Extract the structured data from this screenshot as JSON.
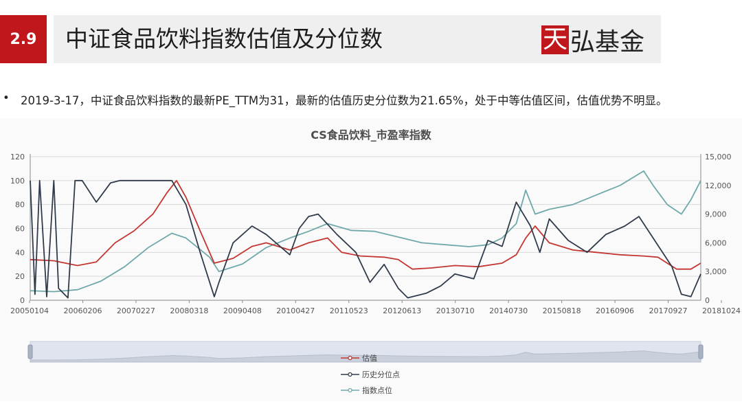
{
  "header": {
    "section_number": "2.9",
    "title": "中证食品饮料指数估值及分位数",
    "logo_mark": "天",
    "logo_rest": "弘基金"
  },
  "bullet": {
    "marker": "•",
    "text": "2019-3-17，中证食品饮料指数的最新PE_TTM为31，最新的估值历史分位数为21.65%，处于中等估值区间，估值优势不明显。"
  },
  "colors": {
    "accent": "#c0171d",
    "pe_line": "#c23531",
    "percentile_line": "#2f3a4a",
    "index_line": "#6fa8a9"
  },
  "chart_data": {
    "type": "line",
    "title": "CS食品饮料_市盈率指数",
    "y_left": {
      "range": [
        0,
        120
      ],
      "ticks": [
        "0",
        "20",
        "40",
        "60",
        "80",
        "100",
        "120"
      ]
    },
    "y_right": {
      "range": [
        0,
        15000
      ],
      "ticks": [
        "0",
        "3,000",
        "6,000",
        "9,000",
        "12,000",
        "15,000"
      ]
    },
    "x_ticks": [
      "20050104",
      "20060206",
      "20070227",
      "20080318",
      "20090408",
      "20100427",
      "20110523",
      "20120613",
      "20130710",
      "20140730",
      "20150818",
      "20160906",
      "20170927",
      "20181024"
    ],
    "x_range": [
      2005.0,
      2019.21
    ],
    "grid": true,
    "legend_position": "bottom",
    "series": [
      {
        "name": "估值",
        "axis": "left",
        "x": [
          2005.0,
          2005.5,
          2006.0,
          2006.4,
          2006.8,
          2007.2,
          2007.6,
          2007.9,
          2008.1,
          2008.3,
          2008.6,
          2008.9,
          2009.3,
          2009.7,
          2010.0,
          2010.5,
          2010.9,
          2011.3,
          2011.6,
          2012.0,
          2012.5,
          2012.8,
          2013.1,
          2013.5,
          2014.0,
          2014.5,
          2015.0,
          2015.3,
          2015.5,
          2015.7,
          2016.0,
          2016.5,
          2017.0,
          2017.5,
          2018.0,
          2018.3,
          2018.7,
          2019.0,
          2019.21
        ],
        "values": [
          34,
          33,
          29,
          32,
          48,
          58,
          72,
          90,
          100,
          86,
          58,
          31,
          35,
          45,
          48,
          42,
          48,
          52,
          40,
          37,
          36,
          34,
          26,
          27,
          29,
          28,
          31,
          38,
          52,
          62,
          48,
          42,
          40,
          38,
          37,
          36,
          26,
          26,
          31
        ]
      },
      {
        "name": "历史分位点",
        "axis": "left",
        "x": [
          2005.0,
          2005.1,
          2005.2,
          2005.35,
          2005.5,
          2005.6,
          2005.8,
          2005.95,
          2006.1,
          2006.4,
          2006.7,
          2006.9,
          2007.2,
          2007.6,
          2008.0,
          2008.3,
          2008.6,
          2008.9,
          2009.0,
          2009.3,
          2009.7,
          2010.0,
          2010.5,
          2010.7,
          2010.9,
          2011.1,
          2011.5,
          2011.9,
          2012.2,
          2012.5,
          2012.8,
          2013.0,
          2013.4,
          2013.7,
          2014.0,
          2014.4,
          2014.7,
          2015.0,
          2015.3,
          2015.6,
          2015.8,
          2016.0,
          2016.4,
          2016.8,
          2017.2,
          2017.6,
          2017.9,
          2018.2,
          2018.6,
          2018.8,
          2019.0,
          2019.21
        ],
        "values": [
          100,
          5,
          100,
          3,
          100,
          10,
          2,
          100,
          100,
          82,
          98,
          100,
          100,
          100,
          100,
          80,
          40,
          3,
          15,
          48,
          62,
          55,
          38,
          60,
          70,
          72,
          55,
          40,
          15,
          30,
          10,
          2,
          6,
          12,
          22,
          18,
          50,
          45,
          82,
          62,
          40,
          68,
          50,
          40,
          55,
          62,
          70,
          52,
          28,
          5,
          3,
          22
        ]
      },
      {
        "name": "指数点位",
        "axis": "right",
        "x": [
          2005.0,
          2005.5,
          2006.0,
          2006.5,
          2007.0,
          2007.5,
          2008.0,
          2008.3,
          2008.8,
          2009.0,
          2009.5,
          2010.0,
          2010.5,
          2010.9,
          2011.3,
          2011.8,
          2012.3,
          2012.8,
          2013.3,
          2013.8,
          2014.3,
          2014.7,
          2015.0,
          2015.3,
          2015.5,
          2015.7,
          2016.0,
          2016.5,
          2017.0,
          2017.5,
          2018.0,
          2018.2,
          2018.5,
          2018.8,
          2019.0,
          2019.21
        ],
        "values": [
          1000,
          900,
          1100,
          2000,
          3500,
          5500,
          7000,
          6500,
          4500,
          3000,
          3800,
          5500,
          6500,
          7200,
          8000,
          7300,
          7200,
          6600,
          6000,
          5800,
          5600,
          5800,
          6500,
          8000,
          11500,
          9000,
          9500,
          10000,
          11000,
          12000,
          13500,
          12000,
          10000,
          9000,
          10500,
          12500
        ]
      }
    ]
  }
}
